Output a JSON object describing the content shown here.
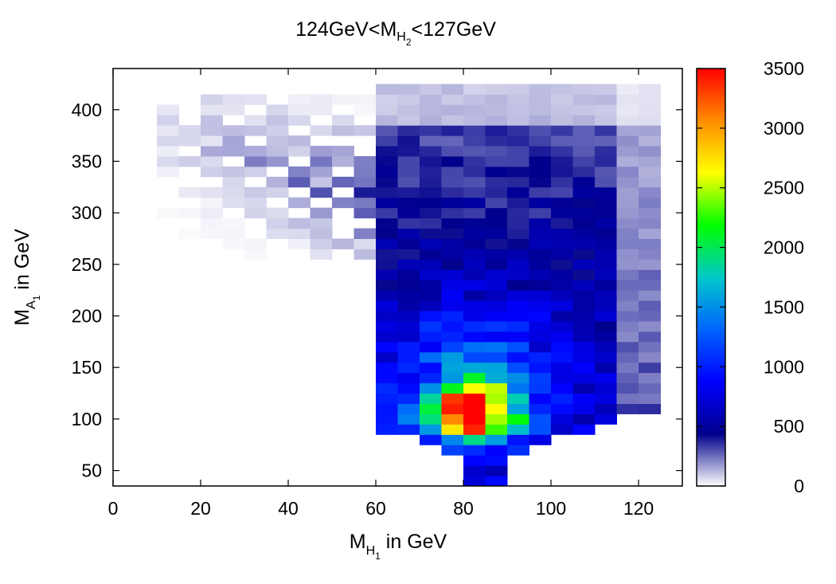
{
  "chart_data": {
    "type": "heatmap",
    "title": {
      "prefix": "124GeV<M",
      "sub1": "H",
      "sub2": "2",
      "suffix": "<127GeV"
    },
    "xlabel": {
      "main": "M",
      "sub1": "H",
      "sub2": "1",
      "rest": " in GeV"
    },
    "ylabel": {
      "main": "M",
      "sub1": "A",
      "sub2": "1",
      "rest": " in GeV"
    },
    "xlim": [
      0,
      130
    ],
    "ylim": [
      35,
      440
    ],
    "x_ticks": [
      "0",
      "20",
      "40",
      "60",
      "80",
      "100",
      "120"
    ],
    "y_ticks": [
      "50",
      "100",
      "150",
      "200",
      "250",
      "300",
      "350",
      "400"
    ],
    "colorbar": {
      "range": [
        0,
        3500
      ],
      "ticks": [
        "0",
        "500",
        "1000",
        "1500",
        "2000",
        "2500",
        "3000",
        "3500"
      ],
      "colormap": [
        "#ffffff",
        "#00008b",
        "#0000ff",
        "#0064ff",
        "#00c8c8",
        "#00ff00",
        "#ffff00",
        "#ff8c00",
        "#ff0000"
      ]
    },
    "bin_width_x": 5,
    "bin_height_y": 10,
    "density_description": {
      "peak": {
        "x": 82,
        "y": 105,
        "value": 3300
      },
      "main_region_x": [
        60,
        125
      ],
      "main_region_y": [
        40,
        420
      ],
      "sparse_tail_region_x": [
        10,
        60
      ],
      "sparse_tail_region_y": [
        260,
        410
      ]
    },
    "grid": false
  }
}
